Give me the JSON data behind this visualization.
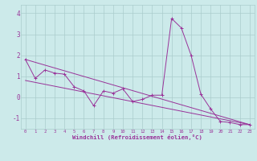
{
  "x": [
    0,
    1,
    2,
    3,
    4,
    5,
    6,
    7,
    8,
    9,
    10,
    11,
    12,
    13,
    14,
    15,
    16,
    17,
    18,
    19,
    20,
    21,
    22,
    23
  ],
  "line1": [
    1.8,
    0.9,
    1.3,
    1.15,
    1.1,
    0.5,
    0.3,
    -0.4,
    0.3,
    0.2,
    0.4,
    -0.2,
    -0.1,
    0.1,
    0.1,
    3.75,
    3.3,
    2.0,
    0.15,
    -0.55,
    -1.15,
    -1.2,
    -1.3,
    -1.3
  ],
  "line2_x": [
    0,
    23
  ],
  "line2_y": [
    1.8,
    -1.3
  ],
  "line3_x": [
    0,
    23
  ],
  "line3_y": [
    0.8,
    -1.3
  ],
  "color": "#993399",
  "bg_color": "#cceaea",
  "grid_color": "#aacccc",
  "xlabel": "Windchill (Refroidissement éolien,°C)",
  "ylim": [
    -1.5,
    4.4
  ],
  "xlim": [
    -0.5,
    23.5
  ],
  "yticks": [
    -1,
    0,
    1,
    2,
    3,
    4
  ],
  "xticks": [
    0,
    1,
    2,
    3,
    4,
    5,
    6,
    7,
    8,
    9,
    10,
    11,
    12,
    13,
    14,
    15,
    16,
    17,
    18,
    19,
    20,
    21,
    22,
    23
  ]
}
